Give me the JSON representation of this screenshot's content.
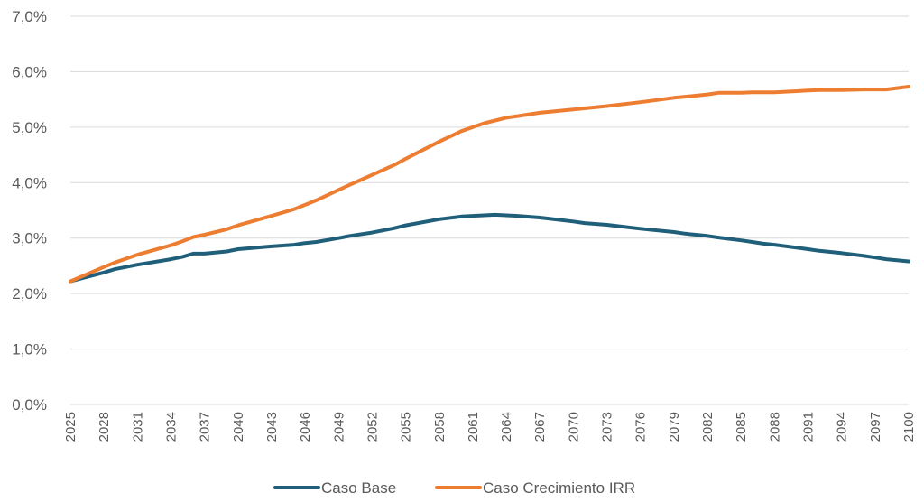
{
  "chart_data": {
    "type": "line",
    "title": "",
    "xlabel": "",
    "ylabel": "",
    "ylim": [
      0,
      0.07
    ],
    "y_ticks": [
      "0,0%",
      "1,0%",
      "2,0%",
      "3,0%",
      "4,0%",
      "5,0%",
      "6,0%",
      "7,0%"
    ],
    "y_tick_values": [
      0,
      0.01,
      0.02,
      0.03,
      0.04,
      0.05,
      0.06,
      0.07
    ],
    "x_ticks": [
      "2025",
      "2028",
      "2031",
      "2034",
      "2037",
      "2040",
      "2043",
      "2046",
      "2049",
      "2052",
      "2055",
      "2058",
      "2061",
      "2064",
      "2067",
      "2070",
      "2073",
      "2076",
      "2079",
      "2082",
      "2085",
      "2088",
      "2091",
      "2094",
      "2097",
      "2100"
    ],
    "grid": true,
    "legend_position": "bottom",
    "x": [
      2025,
      2028,
      2029,
      2031,
      2034,
      2035,
      2036,
      2037,
      2039,
      2040,
      2043,
      2045,
      2046,
      2047,
      2049,
      2050,
      2052,
      2054,
      2055,
      2058,
      2060,
      2061,
      2062,
      2063,
      2064,
      2065,
      2067,
      2070,
      2071,
      2073,
      2076,
      2079,
      2080,
      2082,
      2083,
      2085,
      2086,
      2087,
      2088,
      2091,
      2092,
      2094,
      2096,
      2097,
      2098,
      2100
    ],
    "series": [
      {
        "name": "Caso Base",
        "color": "#1f5f7a",
        "values": [
          0.0222,
          0.0238,
          0.0244,
          0.0252,
          0.0262,
          0.0266,
          0.0272,
          0.0272,
          0.0276,
          0.028,
          0.0285,
          0.0288,
          0.0291,
          0.0293,
          0.03,
          0.0304,
          0.031,
          0.0318,
          0.0323,
          0.0334,
          0.0339,
          0.034,
          0.0341,
          0.0342,
          0.0341,
          0.034,
          0.0337,
          0.033,
          0.0327,
          0.0324,
          0.0317,
          0.0311,
          0.0308,
          0.0304,
          0.0301,
          0.0296,
          0.0293,
          0.029,
          0.0288,
          0.028,
          0.0277,
          0.0273,
          0.0268,
          0.0265,
          0.0262,
          0.0258
        ]
      },
      {
        "name": "Caso Crecimiento IRR",
        "color": "#ed7d31",
        "values": [
          0.0222,
          0.0248,
          0.0256,
          0.027,
          0.0287,
          0.0294,
          0.0302,
          0.0306,
          0.0316,
          0.0323,
          0.034,
          0.0352,
          0.036,
          0.0368,
          0.0387,
          0.0396,
          0.0414,
          0.0432,
          0.0443,
          0.0474,
          0.0493,
          0.05,
          0.0507,
          0.0512,
          0.0517,
          0.052,
          0.0526,
          0.0532,
          0.0534,
          0.0538,
          0.0545,
          0.0553,
          0.0555,
          0.0559,
          0.0562,
          0.0562,
          0.0563,
          0.0563,
          0.0563,
          0.0566,
          0.0567,
          0.0567,
          0.0568,
          0.0568,
          0.0568,
          0.0573
        ]
      }
    ]
  }
}
